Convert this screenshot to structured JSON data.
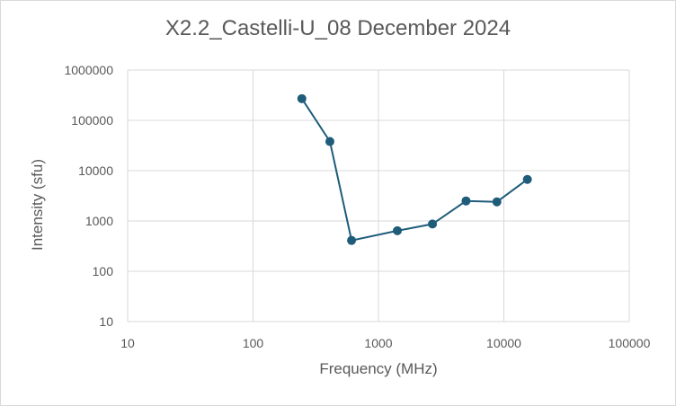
{
  "chart_data": {
    "type": "scatter",
    "title": "X2.2_Castelli-U_08 December 2024",
    "xlabel": "Frequency (MHz)",
    "ylabel": "Intensity (sfu)",
    "x_scale": "log",
    "y_scale": "log",
    "xlim": [
      10,
      100000
    ],
    "ylim": [
      10,
      1000000
    ],
    "x_ticks": [
      "10",
      "100",
      "1000",
      "10000",
      "100000"
    ],
    "y_ticks": [
      "10",
      "100",
      "1000",
      "10000",
      "100000",
      "1000000"
    ],
    "grid": true,
    "legend": "none",
    "series": [
      {
        "style": "line-markers",
        "color": "#1f5c7a",
        "x": [
          245,
          410,
          610,
          1415,
          2695,
          4995,
          8800,
          15400
        ],
        "y": [
          270000,
          38000,
          410,
          640,
          870,
          2500,
          2400,
          6700
        ]
      }
    ]
  }
}
